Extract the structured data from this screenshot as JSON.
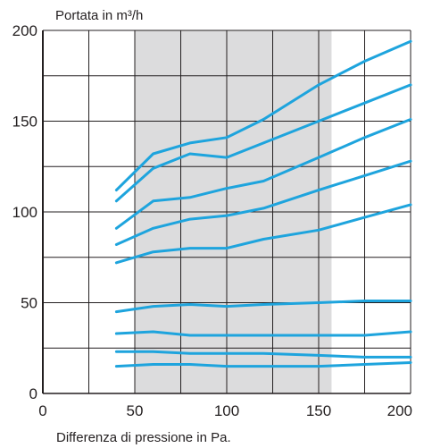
{
  "chart_data": {
    "type": "line",
    "title": "",
    "ylabel": "Portata in m³/h",
    "xlabel": "Differenza di pressione in Pa.",
    "xlim": [
      0,
      200
    ],
    "ylim": [
      0,
      200
    ],
    "x_ticks": [
      0,
      50,
      100,
      150,
      200
    ],
    "y_ticks": [
      0,
      50,
      100,
      150,
      200
    ],
    "x_gridlines": [
      0,
      25,
      50,
      75,
      100,
      125,
      150,
      175,
      200
    ],
    "y_gridlines": [
      0,
      25,
      50,
      75,
      100,
      125,
      150,
      175,
      200
    ],
    "grid": true,
    "shaded_band_x": [
      50,
      157
    ],
    "colors": {
      "line": "#1ea4dd",
      "band": "#dcdcdd",
      "grid": "#231f20",
      "text": "#231f20"
    },
    "series": [
      {
        "x": [
          40,
          60,
          80,
          100,
          120,
          150,
          175,
          200
        ],
        "values": [
          112,
          132,
          138,
          141,
          151,
          170,
          183,
          194
        ]
      },
      {
        "x": [
          40,
          60,
          80,
          100,
          120,
          150,
          175,
          200
        ],
        "values": [
          106,
          124,
          132,
          130,
          138,
          150,
          160,
          170
        ]
      },
      {
        "x": [
          40,
          60,
          80,
          100,
          120,
          150,
          175,
          200
        ],
        "values": [
          91,
          106,
          108,
          113,
          117,
          130,
          141,
          151
        ]
      },
      {
        "x": [
          40,
          60,
          80,
          100,
          120,
          150,
          175,
          200
        ],
        "values": [
          82,
          91,
          96,
          98,
          102,
          112,
          120,
          128
        ]
      },
      {
        "x": [
          40,
          60,
          80,
          100,
          120,
          150,
          175,
          200
        ],
        "values": [
          72,
          78,
          80,
          80,
          85,
          90,
          97,
          104
        ]
      },
      {
        "x": [
          40,
          60,
          80,
          100,
          120,
          150,
          175,
          200
        ],
        "values": [
          45,
          48,
          49,
          48,
          49,
          50,
          51,
          51
        ]
      },
      {
        "x": [
          40,
          60,
          80,
          100,
          120,
          150,
          175,
          200
        ],
        "values": [
          33,
          34,
          32,
          32,
          32,
          32,
          32,
          34
        ]
      },
      {
        "x": [
          40,
          60,
          80,
          100,
          120,
          150,
          175,
          200
        ],
        "values": [
          23,
          23,
          22,
          22,
          22,
          21,
          20,
          20
        ]
      },
      {
        "x": [
          40,
          60,
          80,
          100,
          120,
          150,
          175,
          200
        ],
        "values": [
          15,
          16,
          16,
          15,
          15,
          15,
          16,
          17
        ]
      }
    ]
  }
}
